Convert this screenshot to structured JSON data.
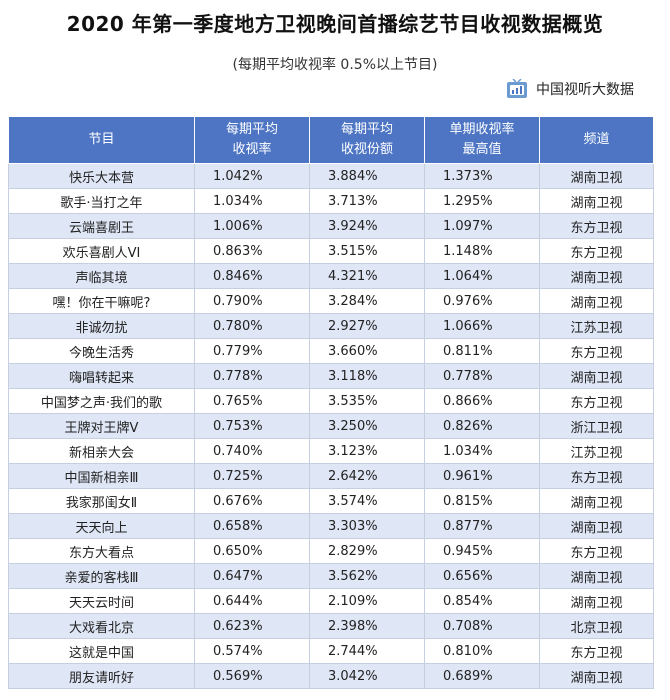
{
  "title": "2020 年第一季度地方卫视晚间首播综艺节目收视数据概览",
  "subtitle": "(每期平均收视率 0.5%以上节目)",
  "brand": {
    "name": "中国视听大数据",
    "icon": "tv-data-logo-icon"
  },
  "table": {
    "headers": [
      {
        "line1": "节目",
        "line2": ""
      },
      {
        "line1": "每期平均",
        "line2": "收视率"
      },
      {
        "line1": "每期平均",
        "line2": "收视份额"
      },
      {
        "line1": "单期收视率",
        "line2": "最高值"
      },
      {
        "line1": "频道",
        "line2": ""
      }
    ],
    "rows": [
      [
        "快乐大本营",
        "1.042%",
        "3.884%",
        "1.373%",
        "湖南卫视"
      ],
      [
        "歌手·当打之年",
        "1.034%",
        "3.713%",
        "1.295%",
        "湖南卫视"
      ],
      [
        "云端喜剧王",
        "1.006%",
        "3.924%",
        "1.097%",
        "东方卫视"
      ],
      [
        "欢乐喜剧人VI",
        "0.863%",
        "3.515%",
        "1.148%",
        "东方卫视"
      ],
      [
        "声临其境",
        "0.846%",
        "4.321%",
        "1.064%",
        "湖南卫视"
      ],
      [
        "嘿！你在干嘛呢?",
        "0.790%",
        "3.284%",
        "0.976%",
        "湖南卫视"
      ],
      [
        "非诚勿扰",
        "0.780%",
        "2.927%",
        "1.066%",
        "江苏卫视"
      ],
      [
        "今晚生活秀",
        "0.779%",
        "3.660%",
        "0.811%",
        "东方卫视"
      ],
      [
        "嗨唱转起来",
        "0.778%",
        "3.118%",
        "0.778%",
        "湖南卫视"
      ],
      [
        "中国梦之声·我们的歌",
        "0.765%",
        "3.535%",
        "0.866%",
        "东方卫视"
      ],
      [
        "王牌对王牌V",
        "0.753%",
        "3.250%",
        "0.826%",
        "浙江卫视"
      ],
      [
        "新相亲大会",
        "0.740%",
        "3.123%",
        "1.034%",
        "江苏卫视"
      ],
      [
        "中国新相亲Ⅲ",
        "0.725%",
        "2.642%",
        "0.961%",
        "东方卫视"
      ],
      [
        "我家那闺女Ⅱ",
        "0.676%",
        "3.574%",
        "0.815%",
        "湖南卫视"
      ],
      [
        "天天向上",
        "0.658%",
        "3.303%",
        "0.877%",
        "湖南卫视"
      ],
      [
        "东方大看点",
        "0.650%",
        "2.829%",
        "0.945%",
        "东方卫视"
      ],
      [
        "亲爱的客栈Ⅲ",
        "0.647%",
        "3.562%",
        "0.656%",
        "湖南卫视"
      ],
      [
        "天天云时间",
        "0.644%",
        "2.109%",
        "0.854%",
        "湖南卫视"
      ],
      [
        "大戏看北京",
        "0.623%",
        "2.398%",
        "0.708%",
        "北京卫视"
      ],
      [
        "这就是中国",
        "0.574%",
        "2.744%",
        "0.810%",
        "东方卫视"
      ],
      [
        "朋友请听好",
        "0.569%",
        "3.042%",
        "0.689%",
        "湖南卫视"
      ]
    ]
  },
  "colors": {
    "header_bg": "#4d75c4",
    "stripe_bg": "#dfe6f5",
    "border": "#c5cfe0"
  }
}
